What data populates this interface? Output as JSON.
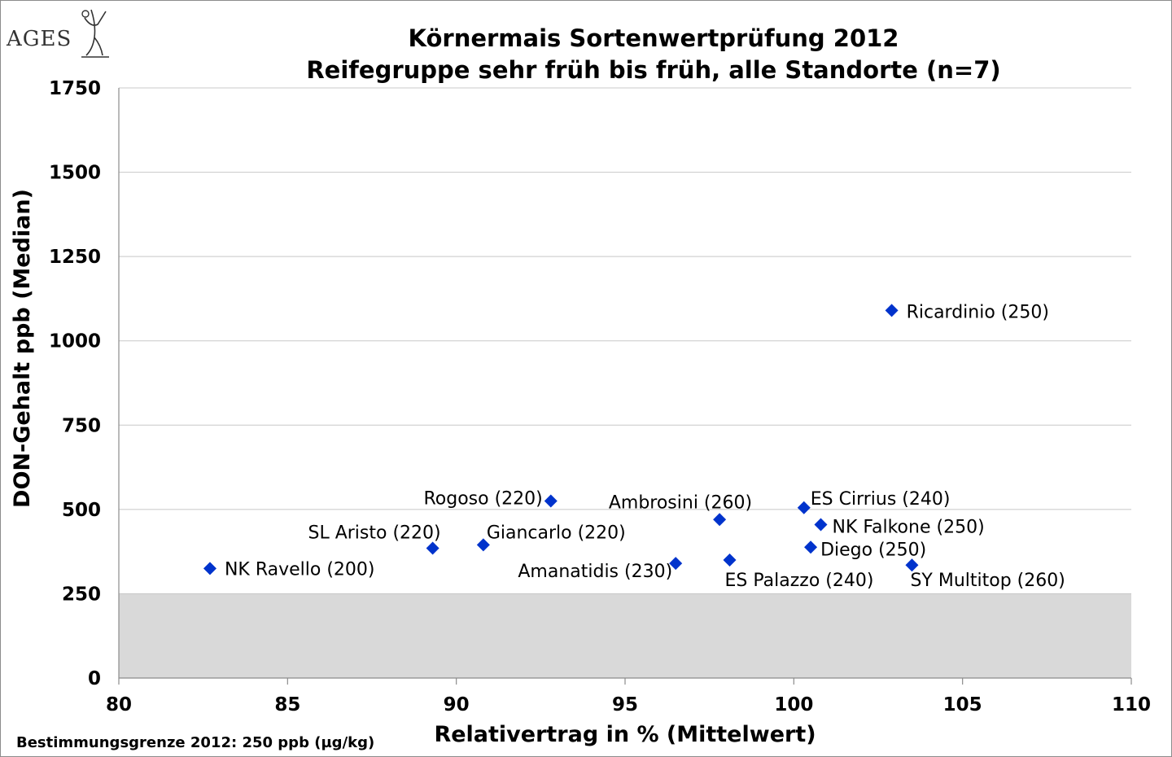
{
  "logo": {
    "text": "AGES"
  },
  "chart_data": {
    "type": "scatter",
    "title": "Körnermais Sortenwertprüfung 2012",
    "subtitle": "Reifegruppe sehr früh bis früh, alle Standorte (n=7)",
    "xlabel": "Relativertrag in % (Mittelwert)",
    "ylabel": "DON-Gehalt ppb (Median)",
    "xlim": [
      80,
      110
    ],
    "ylim": [
      0,
      1750
    ],
    "x_ticks": [
      80,
      85,
      90,
      95,
      100,
      105,
      110
    ],
    "y_ticks": [
      0,
      250,
      500,
      750,
      1000,
      1250,
      1500,
      1750
    ],
    "grid": "horizontal",
    "marker": "diamond",
    "marker_color": "#0033cc",
    "threshold_band": {
      "from": 0,
      "to": 250,
      "color": "#d9d9d9"
    },
    "points": [
      {
        "label": "NK Ravello (200)",
        "x": 82.7,
        "y": 325
      },
      {
        "label": "SL Aristo (220)",
        "x": 89.3,
        "y": 385
      },
      {
        "label": "Giancarlo (220)",
        "x": 90.8,
        "y": 395
      },
      {
        "label": "Rogoso (220)",
        "x": 92.8,
        "y": 525
      },
      {
        "label": "Amanatidis (230)",
        "x": 96.5,
        "y": 340
      },
      {
        "label": "Ambrosini (260)",
        "x": 97.8,
        "y": 470
      },
      {
        "label": "ES Palazzo (240)",
        "x": 98.1,
        "y": 350
      },
      {
        "label": "ES Cirrius (240)",
        "x": 100.3,
        "y": 505
      },
      {
        "label": "NK Falkone (250)",
        "x": 100.8,
        "y": 455
      },
      {
        "label": "Diego (250)",
        "x": 100.5,
        "y": 388
      },
      {
        "label": "Ricardinio (250)",
        "x": 102.9,
        "y": 1090
      },
      {
        "label": "SY Multitop (260)",
        "x": 103.5,
        "y": 335
      }
    ]
  },
  "footnote": "Bestimmungsgrenze 2012: 250 ppb (µg/kg)"
}
